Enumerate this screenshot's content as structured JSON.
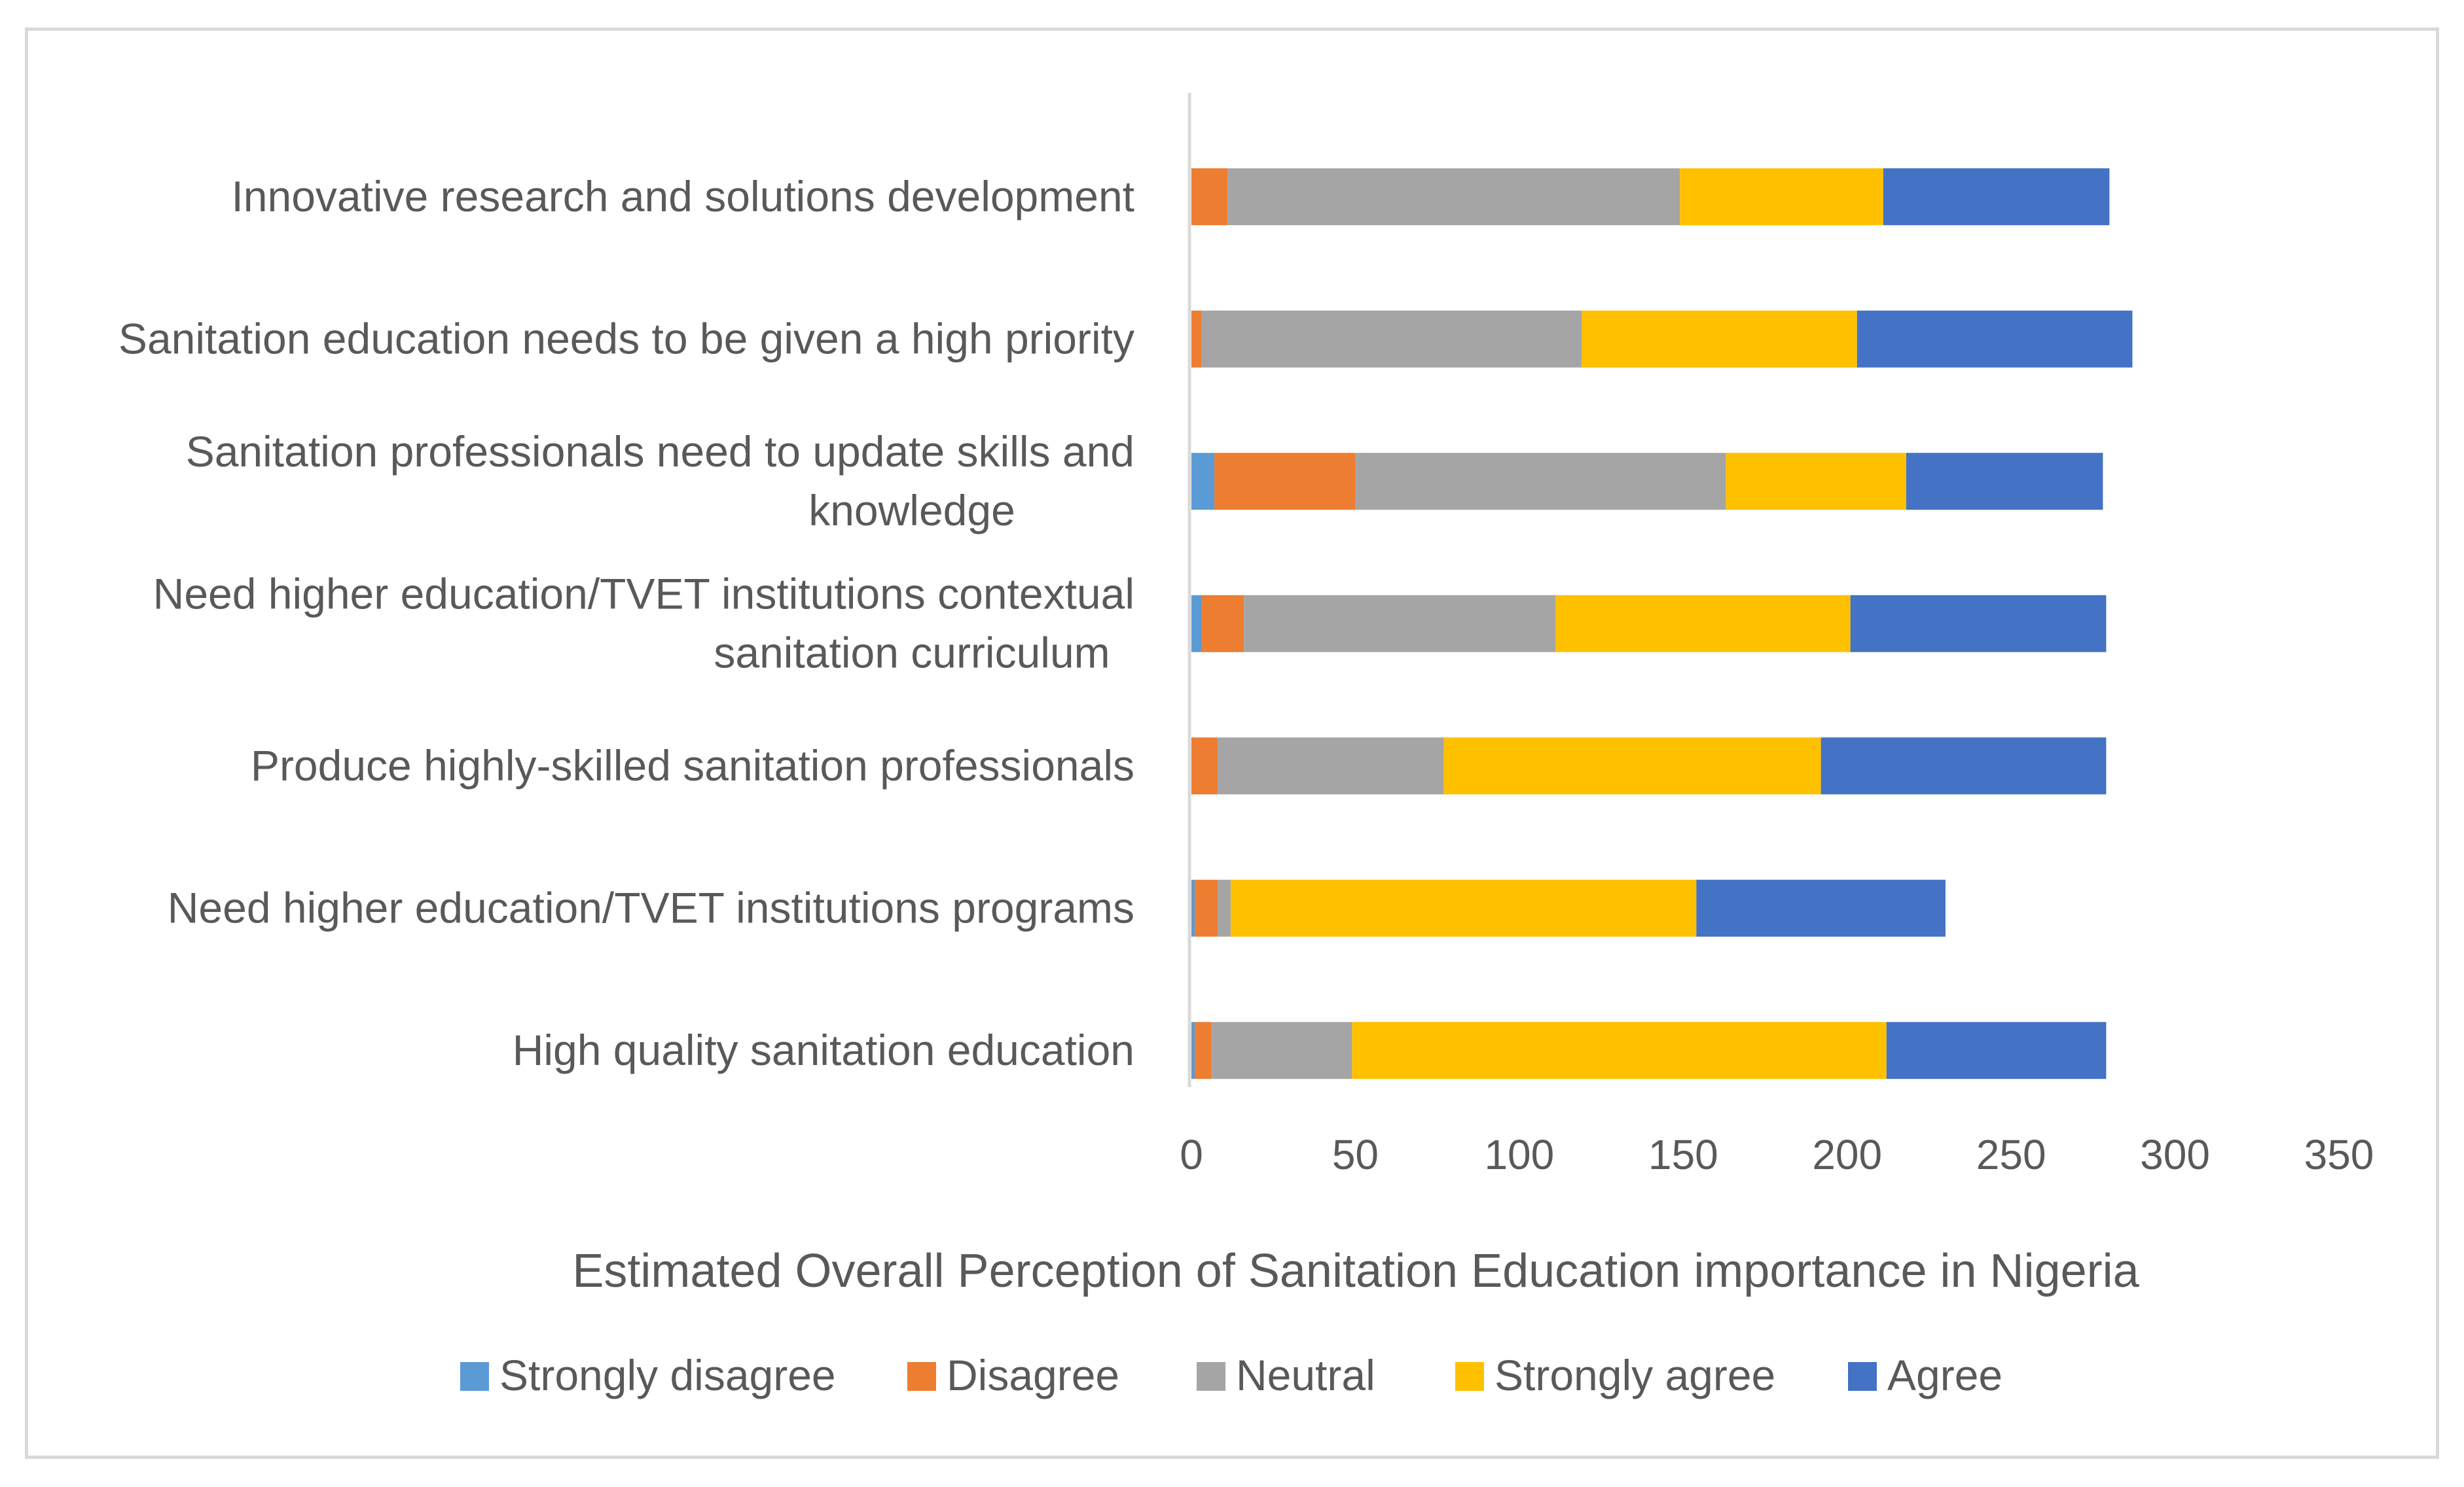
{
  "chart_data": {
    "type": "bar",
    "orientation": "horizontal",
    "stacked": true,
    "title": "",
    "xlabel": "Estimated Overall Perception of Sanitation Education importance in Nigeria",
    "ylabel": "",
    "xlim": [
      0,
      350
    ],
    "xticks": [
      "0",
      "50",
      "100",
      "150",
      "200",
      "250",
      "300",
      "350"
    ],
    "grid": false,
    "legend_position": "bottom",
    "categories": [
      [
        "Innovative research and solutions development"
      ],
      [
        "Sanitation education needs to be given a high priority"
      ],
      [
        "Sanitation professionals need to update skills and",
        "knowledge"
      ],
      [
        "Need higher education/TVET institutions contextual",
        "sanitation curriculum"
      ],
      [
        "Produce highly-skilled sanitation professionals"
      ],
      [
        "Need higher education/TVET institutions programs"
      ],
      [
        "High quality sanitation education"
      ]
    ],
    "series": [
      {
        "name": "Strongly disagree",
        "color": "#5b9bd5",
        "values": [
          0,
          0,
          7,
          3,
          0,
          1,
          1
        ]
      },
      {
        "name": "Disagree",
        "color": "#ed7d31",
        "values": [
          11,
          3,
          43,
          13,
          8,
          7,
          5
        ]
      },
      {
        "name": "Neutral",
        "color": "#a5a5a5",
        "values": [
          138,
          116,
          113,
          95,
          69,
          4,
          43
        ]
      },
      {
        "name": "Strongly agree",
        "color": "#ffc000",
        "values": [
          62,
          84,
          55,
          90,
          115,
          142,
          163
        ]
      },
      {
        "name": "Agree",
        "color": "#4472c4",
        "values": [
          69,
          84,
          60,
          78,
          87,
          76,
          67
        ]
      }
    ]
  }
}
